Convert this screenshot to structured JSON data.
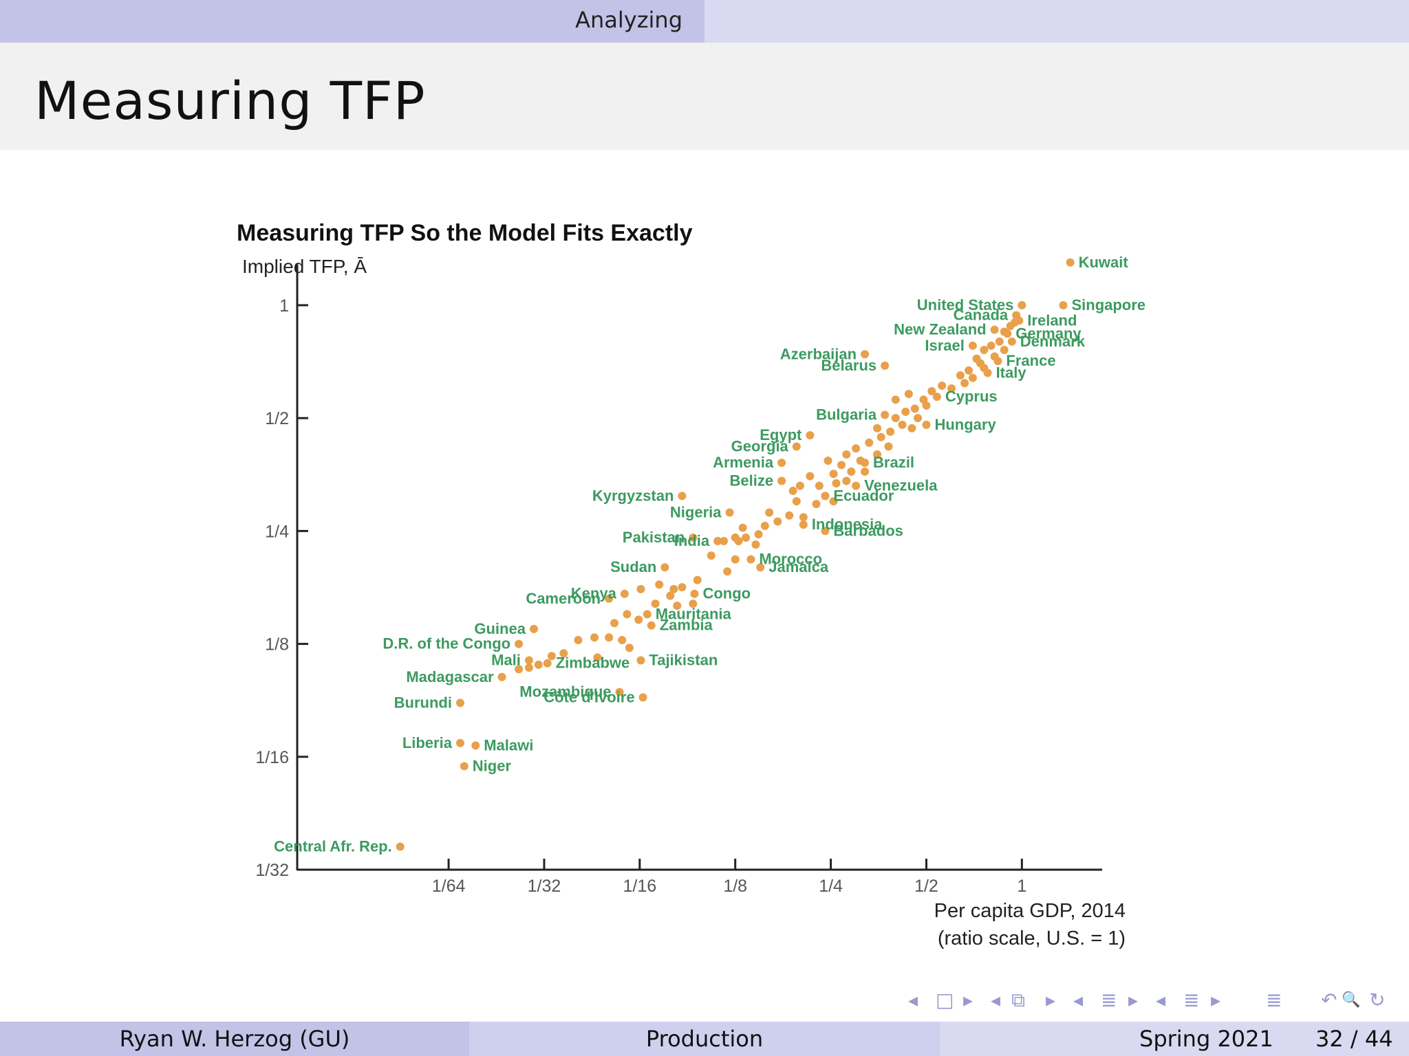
{
  "header": {
    "section": "Analyzing"
  },
  "frame": {
    "title": "Measuring TFP"
  },
  "chart_data": {
    "type": "scatter",
    "title": "Measuring TFP So the Model Fits Exactly",
    "ylabel": "Implied TFP, Ā",
    "xlabel_line1": "Per capita GDP, 2014",
    "xlabel_line2": "(ratio scale, U.S. = 1)",
    "x_scale": "log2",
    "y_scale": "log2",
    "xticks": [
      {
        "label": "1/64",
        "value": 0.015625
      },
      {
        "label": "1/32",
        "value": 0.03125
      },
      {
        "label": "1/16",
        "value": 0.0625
      },
      {
        "label": "1/8",
        "value": 0.125
      },
      {
        "label": "1/4",
        "value": 0.25
      },
      {
        "label": "1/2",
        "value": 0.5
      },
      {
        "label": "1",
        "value": 1
      }
    ],
    "yticks": [
      {
        "label": "1",
        "value": 1
      },
      {
        "label": "1/2",
        "value": 0.5
      },
      {
        "label": "1/4",
        "value": 0.25
      },
      {
        "label": "1/8",
        "value": 0.125
      },
      {
        "label": "1/16",
        "value": 0.0625
      },
      {
        "label": "1/32",
        "value": 0.03125
      }
    ],
    "xlim": [
      0.00521,
      1.79
    ],
    "ylim": [
      0.03125,
      1.13
    ],
    "labeled_points": [
      {
        "name": "Kuwait",
        "x": 1.42,
        "y": 1.3
      },
      {
        "name": "Singapore",
        "x": 1.35,
        "y": 1.0
      },
      {
        "name": "United States",
        "x": 1.0,
        "y": 1.0
      },
      {
        "name": "Canada",
        "x": 0.96,
        "y": 0.94
      },
      {
        "name": "Ireland",
        "x": 0.98,
        "y": 0.91
      },
      {
        "name": "New Zealand",
        "x": 0.82,
        "y": 0.86
      },
      {
        "name": "Israel",
        "x": 0.7,
        "y": 0.78
      },
      {
        "name": "Germany",
        "x": 0.9,
        "y": 0.84
      },
      {
        "name": "Denmark",
        "x": 0.93,
        "y": 0.8
      },
      {
        "name": "France",
        "x": 0.84,
        "y": 0.71
      },
      {
        "name": "Italy",
        "x": 0.78,
        "y": 0.66
      },
      {
        "name": "Azerbaijan",
        "x": 0.32,
        "y": 0.74
      },
      {
        "name": "Belarus",
        "x": 0.37,
        "y": 0.69
      },
      {
        "name": "Egypt",
        "x": 0.215,
        "y": 0.45
      },
      {
        "name": "Bulgaria",
        "x": 0.37,
        "y": 0.51
      },
      {
        "name": "Cyprus",
        "x": 0.54,
        "y": 0.57
      },
      {
        "name": "Hungary",
        "x": 0.5,
        "y": 0.48
      },
      {
        "name": "Georgia",
        "x": 0.195,
        "y": 0.42
      },
      {
        "name": "Armenia",
        "x": 0.175,
        "y": 0.38
      },
      {
        "name": "Brazil",
        "x": 0.32,
        "y": 0.38
      },
      {
        "name": "Belize",
        "x": 0.175,
        "y": 0.34
      },
      {
        "name": "Kyrgyzstan",
        "x": 0.085,
        "y": 0.31
      },
      {
        "name": "Venezuela",
        "x": 0.3,
        "y": 0.33
      },
      {
        "name": "Nigeria",
        "x": 0.12,
        "y": 0.28
      },
      {
        "name": "Ecuador",
        "x": 0.24,
        "y": 0.31
      },
      {
        "name": "Indonesia",
        "x": 0.205,
        "y": 0.26
      },
      {
        "name": "Pakistan",
        "x": 0.092,
        "y": 0.24
      },
      {
        "name": "Barbados",
        "x": 0.24,
        "y": 0.25
      },
      {
        "name": "India",
        "x": 0.11,
        "y": 0.235
      },
      {
        "name": "Morocco",
        "x": 0.14,
        "y": 0.21
      },
      {
        "name": "Jamaica",
        "x": 0.15,
        "y": 0.2
      },
      {
        "name": "Sudan",
        "x": 0.075,
        "y": 0.2
      },
      {
        "name": "Kenya",
        "x": 0.056,
        "y": 0.17
      },
      {
        "name": "Cameroon",
        "x": 0.05,
        "y": 0.165
      },
      {
        "name": "Congo",
        "x": 0.093,
        "y": 0.17
      },
      {
        "name": "Mauritania",
        "x": 0.066,
        "y": 0.15
      },
      {
        "name": "Zambia",
        "x": 0.068,
        "y": 0.14
      },
      {
        "name": "Guinea",
        "x": 0.029,
        "y": 0.137
      },
      {
        "name": "D.R. of the Congo",
        "x": 0.026,
        "y": 0.125
      },
      {
        "name": "Mali",
        "x": 0.028,
        "y": 0.113
      },
      {
        "name": "Zimbabwe",
        "x": 0.032,
        "y": 0.111
      },
      {
        "name": "Tajikistan",
        "x": 0.063,
        "y": 0.113
      },
      {
        "name": "Madagascar",
        "x": 0.023,
        "y": 0.102
      },
      {
        "name": "Mozambique",
        "x": 0.054,
        "y": 0.093
      },
      {
        "name": "Côte d'Ivoire",
        "x": 0.064,
        "y": 0.09
      },
      {
        "name": "Burundi",
        "x": 0.017,
        "y": 0.087
      },
      {
        "name": "Liberia",
        "x": 0.017,
        "y": 0.068
      },
      {
        "name": "Malawi",
        "x": 0.019,
        "y": 0.067
      },
      {
        "name": "Niger",
        "x": 0.0175,
        "y": 0.059
      },
      {
        "name": "Central Afr. Rep.",
        "x": 0.011,
        "y": 0.036
      }
    ],
    "other_points": [
      [
        0.036,
        0.118
      ],
      [
        0.04,
        0.128
      ],
      [
        0.045,
        0.13
      ],
      [
        0.05,
        0.13
      ],
      [
        0.055,
        0.128
      ],
      [
        0.058,
        0.122
      ],
      [
        0.046,
        0.115
      ],
      [
        0.026,
        0.107
      ],
      [
        0.028,
        0.108
      ],
      [
        0.03,
        0.11
      ],
      [
        0.033,
        0.116
      ],
      [
        0.052,
        0.142
      ],
      [
        0.057,
        0.15
      ],
      [
        0.063,
        0.175
      ],
      [
        0.072,
        0.18
      ],
      [
        0.08,
        0.175
      ],
      [
        0.085,
        0.177
      ],
      [
        0.078,
        0.168
      ],
      [
        0.105,
        0.215
      ],
      [
        0.115,
        0.235
      ],
      [
        0.125,
        0.24
      ],
      [
        0.128,
        0.235
      ],
      [
        0.135,
        0.24
      ],
      [
        0.148,
        0.245
      ],
      [
        0.132,
        0.255
      ],
      [
        0.155,
        0.258
      ],
      [
        0.185,
        0.275
      ],
      [
        0.205,
        0.272
      ],
      [
        0.195,
        0.3
      ],
      [
        0.225,
        0.295
      ],
      [
        0.24,
        0.31
      ],
      [
        0.255,
        0.3
      ],
      [
        0.23,
        0.33
      ],
      [
        0.26,
        0.335
      ],
      [
        0.28,
        0.34
      ],
      [
        0.255,
        0.355
      ],
      [
        0.29,
        0.36
      ],
      [
        0.27,
        0.375
      ],
      [
        0.245,
        0.385
      ],
      [
        0.31,
        0.385
      ],
      [
        0.28,
        0.4
      ],
      [
        0.3,
        0.415
      ],
      [
        0.33,
        0.43
      ],
      [
        0.36,
        0.445
      ],
      [
        0.35,
        0.47
      ],
      [
        0.385,
        0.46
      ],
      [
        0.4,
        0.5
      ],
      [
        0.42,
        0.48
      ],
      [
        0.43,
        0.52
      ],
      [
        0.46,
        0.53
      ],
      [
        0.47,
        0.5
      ],
      [
        0.49,
        0.56
      ],
      [
        0.52,
        0.59
      ],
      [
        0.56,
        0.61
      ],
      [
        0.6,
        0.6
      ],
      [
        0.64,
        0.65
      ],
      [
        0.68,
        0.67
      ],
      [
        0.72,
        0.72
      ],
      [
        0.76,
        0.76
      ],
      [
        0.8,
        0.78
      ],
      [
        0.85,
        0.8
      ],
      [
        0.88,
        0.85
      ],
      [
        0.92,
        0.88
      ],
      [
        0.95,
        0.9
      ],
      [
        0.76,
        0.68
      ],
      [
        0.7,
        0.64
      ],
      [
        0.66,
        0.62
      ],
      [
        0.74,
        0.7
      ],
      [
        0.82,
        0.73
      ],
      [
        0.88,
        0.76
      ],
      [
        0.5,
        0.54
      ],
      [
        0.45,
        0.47
      ],
      [
        0.17,
        0.265
      ],
      [
        0.16,
        0.28
      ],
      [
        0.145,
        0.23
      ],
      [
        0.125,
        0.21
      ],
      [
        0.118,
        0.195
      ],
      [
        0.095,
        0.185
      ],
      [
        0.082,
        0.158
      ],
      [
        0.07,
        0.16
      ],
      [
        0.062,
        0.145
      ],
      [
        0.092,
        0.16
      ],
      [
        0.4,
        0.56
      ],
      [
        0.44,
        0.58
      ],
      [
        0.38,
        0.42
      ],
      [
        0.35,
        0.4
      ],
      [
        0.32,
        0.36
      ],
      [
        0.215,
        0.35
      ],
      [
        0.2,
        0.33
      ],
      [
        0.19,
        0.32
      ]
    ]
  },
  "nav": {
    "icons": [
      "◂",
      "□",
      "▸",
      "◂",
      "⧉",
      "▸",
      "◂",
      "≣",
      "▸",
      "◂",
      "≣",
      "▸",
      "≣",
      "↶",
      "🔍",
      "↻"
    ]
  },
  "footer": {
    "author": "Ryan W. Herzog  (GU)",
    "title": "Production",
    "date": "Spring 2021",
    "page": "32 / 44"
  }
}
